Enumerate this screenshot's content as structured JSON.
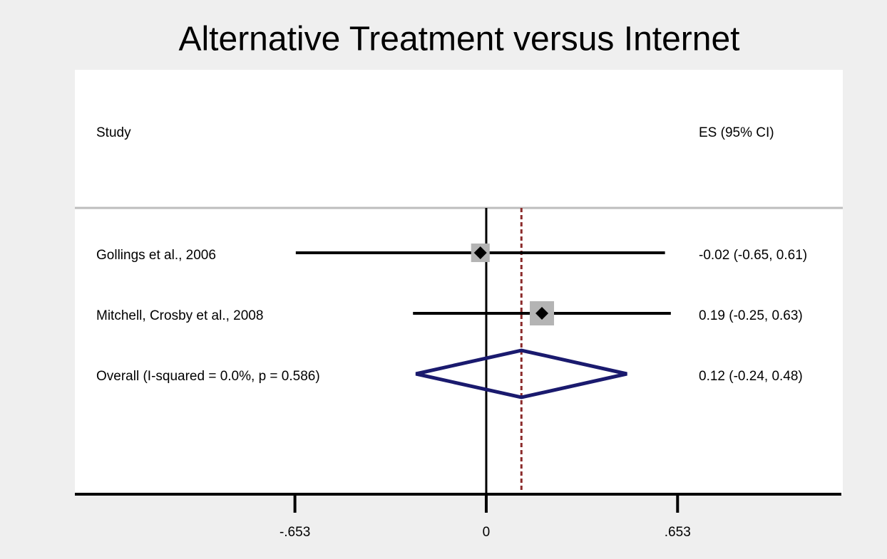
{
  "chart_data": {
    "type": "forest",
    "title": "Alternative Treatment versus Internet",
    "study_header": "Study",
    "es_header": "ES (95% CI)",
    "categories": [
      "Gollings et al., 2006",
      "Mitchell, Crosby et al., 2008"
    ],
    "values": [
      -0.02,
      0.19
    ],
    "lower": [
      -0.65,
      -0.25
    ],
    "upper": [
      0.61,
      0.63
    ],
    "weights": [
      37,
      63
    ],
    "value_labels": [
      "-0.02 (-0.65, 0.61)",
      "0.19 (-0.25, 0.63)"
    ],
    "overall": {
      "label": "Overall  (I-squared = 0.0%, p = 0.586)",
      "value": 0.12,
      "lower": -0.24,
      "upper": 0.48,
      "value_label": "0.12 (-0.24, 0.48)"
    },
    "xlim": [
      -1.404,
      1.212
    ],
    "xticks": [
      {
        "value": -0.653,
        "label": "-.653"
      },
      0,
      {
        "value": 0.653,
        "label": ".653"
      }
    ],
    "box_color": "#b4b4b4",
    "diamond_color": "#1a1a6e",
    "overall_line_color": "#8b2a2a"
  }
}
